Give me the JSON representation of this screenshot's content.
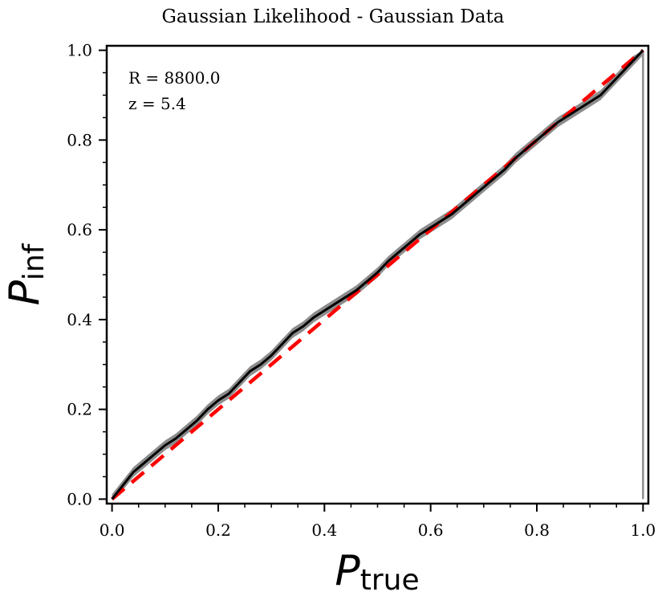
{
  "chart_data": {
    "type": "line",
    "title": "Gaussian Likelihood - Gaussian Data",
    "xlabel_main": "P",
    "xlabel_sub": "true",
    "ylabel_main": "P",
    "ylabel_sub": "inf",
    "xlim": [
      -0.01,
      1.01
    ],
    "ylim": [
      -0.01,
      1.01
    ],
    "xticks": [
      0.0,
      0.2,
      0.4,
      0.6,
      0.8,
      1.0
    ],
    "xtick_labels": [
      "0.0",
      "0.2",
      "0.4",
      "0.6",
      "0.8",
      "1.0"
    ],
    "yticks": [
      0.0,
      0.2,
      0.4,
      0.6,
      0.8,
      1.0
    ],
    "ytick_labels": [
      "0.0",
      "0.2",
      "0.4",
      "0.6",
      "0.8",
      "1.0"
    ],
    "minor_step": 0.05,
    "grid": false,
    "annotations": [
      "R = 8800.0",
      "z = 5.4"
    ],
    "colors": {
      "curve": "#000000",
      "band": "#8c8c8c",
      "reference": "#ff0000"
    },
    "series": [
      {
        "style": "solid",
        "x": [
          0.0,
          0.02,
          0.04,
          0.06,
          0.08,
          0.1,
          0.12,
          0.14,
          0.16,
          0.18,
          0.2,
          0.22,
          0.24,
          0.26,
          0.28,
          0.3,
          0.32,
          0.34,
          0.36,
          0.38,
          0.4,
          0.42,
          0.44,
          0.46,
          0.48,
          0.5,
          0.52,
          0.54,
          0.56,
          0.58,
          0.6,
          0.62,
          0.64,
          0.66,
          0.68,
          0.7,
          0.72,
          0.74,
          0.76,
          0.78,
          0.8,
          0.82,
          0.84,
          0.86,
          0.88,
          0.9,
          0.92,
          0.94,
          0.96,
          0.98,
          1.0
        ],
        "y": [
          0.0,
          0.03,
          0.06,
          0.08,
          0.1,
          0.12,
          0.135,
          0.155,
          0.175,
          0.2,
          0.22,
          0.235,
          0.26,
          0.285,
          0.3,
          0.32,
          0.345,
          0.37,
          0.385,
          0.405,
          0.42,
          0.435,
          0.45,
          0.465,
          0.485,
          0.505,
          0.53,
          0.55,
          0.57,
          0.59,
          0.605,
          0.62,
          0.635,
          0.655,
          0.675,
          0.695,
          0.715,
          0.735,
          0.76,
          0.78,
          0.8,
          0.82,
          0.84,
          0.855,
          0.87,
          0.885,
          0.9,
          0.925,
          0.95,
          0.975,
          1.0
        ],
        "band_halfwidth": 0.011
      },
      {
        "style": "dashed",
        "x": [
          0.0,
          1.0
        ],
        "y": [
          0.0,
          1.0
        ]
      }
    ]
  }
}
